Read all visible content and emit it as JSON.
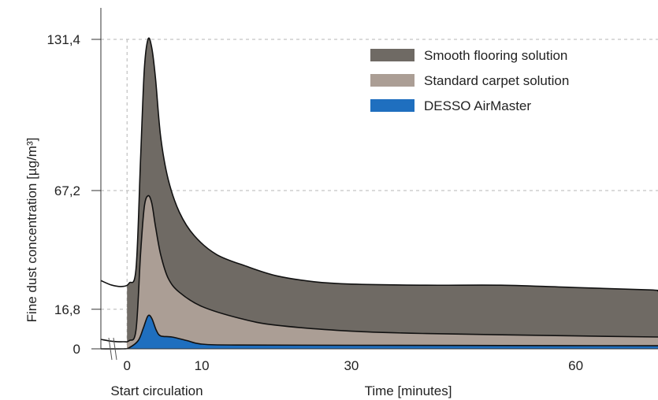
{
  "chart_data": {
    "type": "area",
    "title": "",
    "xlabel": "Time [minutes]",
    "ylabel": "Fine dust concentration [µg/m³]",
    "x_ticks": [
      0,
      10,
      30,
      60
    ],
    "y_ticks": [
      "0",
      "16,8",
      "67,2",
      "131,4"
    ],
    "y_tick_values": [
      0,
      16.8,
      67.2,
      131.4
    ],
    "xlim": [
      -3.5,
      71
    ],
    "ylim": [
      0,
      131.4
    ],
    "annotation": "Start circulation",
    "annotation_x": 0,
    "legend_position": "top-right",
    "grid": "dashed horizontal at ticks",
    "series": [
      {
        "name": "Smooth flooring solution",
        "color": "#6f6a64",
        "points": [
          [
            -3.5,
            29
          ],
          [
            -2,
            27
          ],
          [
            -0.5,
            26.5
          ],
          [
            0.3,
            28
          ],
          [
            1.2,
            34
          ],
          [
            1.8,
            80
          ],
          [
            2.3,
            118
          ],
          [
            2.8,
            131.4
          ],
          [
            3.3,
            128
          ],
          [
            3.8,
            115
          ],
          [
            4.5,
            90
          ],
          [
            5.5,
            72
          ],
          [
            7,
            58
          ],
          [
            9,
            48
          ],
          [
            12,
            40
          ],
          [
            16,
            35
          ],
          [
            20,
            31
          ],
          [
            25,
            28.5
          ],
          [
            30,
            27.5
          ],
          [
            40,
            27
          ],
          [
            50,
            27
          ],
          [
            60,
            26
          ],
          [
            70,
            25
          ],
          [
            71,
            24.5
          ]
        ]
      },
      {
        "name": "Standard carpet solution",
        "color": "#ab9e95",
        "points": [
          [
            -3.5,
            4
          ],
          [
            -2,
            3.2
          ],
          [
            -0.5,
            3
          ],
          [
            0.3,
            3.5
          ],
          [
            1.2,
            8
          ],
          [
            1.8,
            40
          ],
          [
            2.3,
            60
          ],
          [
            2.8,
            65
          ],
          [
            3.3,
            62
          ],
          [
            3.8,
            52
          ],
          [
            4.5,
            40
          ],
          [
            5.5,
            30
          ],
          [
            7,
            24
          ],
          [
            10,
            18
          ],
          [
            15,
            13
          ],
          [
            20,
            10
          ],
          [
            30,
            7.5
          ],
          [
            40,
            6.5
          ],
          [
            60,
            5.5
          ],
          [
            71,
            5
          ]
        ]
      },
      {
        "name": "DESSO AirMaster",
        "color": "#1f6fbf",
        "points": [
          [
            -3.5,
            0
          ],
          [
            -0.5,
            0
          ],
          [
            0.3,
            0.5
          ],
          [
            1.5,
            3.5
          ],
          [
            2.2,
            9
          ],
          [
            2.8,
            14
          ],
          [
            3.3,
            13
          ],
          [
            3.9,
            8
          ],
          [
            4.5,
            5.5
          ],
          [
            6,
            5
          ],
          [
            8,
            3.5
          ],
          [
            10,
            2
          ],
          [
            15,
            1.6
          ],
          [
            30,
            1.5
          ],
          [
            50,
            1.4
          ],
          [
            71,
            1.3
          ]
        ]
      }
    ]
  }
}
